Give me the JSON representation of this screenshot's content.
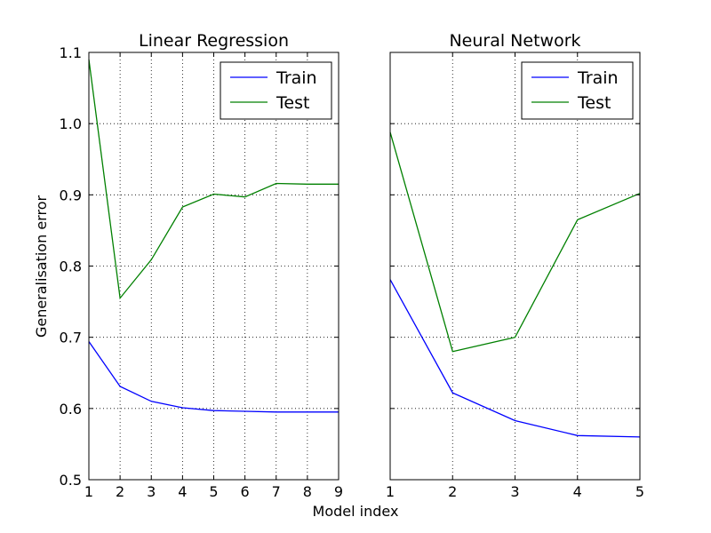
{
  "figure": {
    "ylabel": "Generalisation error",
    "xlabel": "Model index"
  },
  "colors": {
    "train": "#0000ff",
    "test": "#008000"
  },
  "chart_data": [
    {
      "type": "line",
      "title": "Linear Regression",
      "x": [
        1,
        2,
        3,
        4,
        5,
        6,
        7,
        8,
        9
      ],
      "xticks": [
        "1",
        "2",
        "3",
        "4",
        "5",
        "6",
        "7",
        "8",
        "9"
      ],
      "xlim": [
        1,
        9
      ],
      "ylim": [
        0.5,
        1.1
      ],
      "yticks": [
        "0.5",
        "0.6",
        "0.7",
        "0.8",
        "0.9",
        "1.0",
        "1.1"
      ],
      "grid": true,
      "legend_position": "top-right",
      "series": [
        {
          "name": "Train",
          "color": "#0000ff",
          "values": [
            0.694,
            0.631,
            0.61,
            0.601,
            0.597,
            0.596,
            0.595,
            0.595,
            0.595
          ]
        },
        {
          "name": "Test",
          "color": "#008000",
          "values": [
            1.09,
            0.755,
            0.809,
            0.883,
            0.901,
            0.897,
            0.916,
            0.915,
            0.915
          ]
        }
      ]
    },
    {
      "type": "line",
      "title": "Neural Network",
      "x": [
        1,
        2,
        3,
        4,
        5
      ],
      "xticks": [
        "1",
        "2",
        "3",
        "4",
        "5"
      ],
      "xlim": [
        1,
        5
      ],
      "ylim": [
        0.5,
        1.1
      ],
      "grid": true,
      "legend_position": "top-right",
      "series": [
        {
          "name": "Train",
          "color": "#0000ff",
          "values": [
            0.781,
            0.622,
            0.583,
            0.562,
            0.56
          ]
        },
        {
          "name": "Test",
          "color": "#008000",
          "values": [
            0.988,
            0.68,
            0.7,
            0.865,
            0.902
          ]
        }
      ]
    }
  ]
}
